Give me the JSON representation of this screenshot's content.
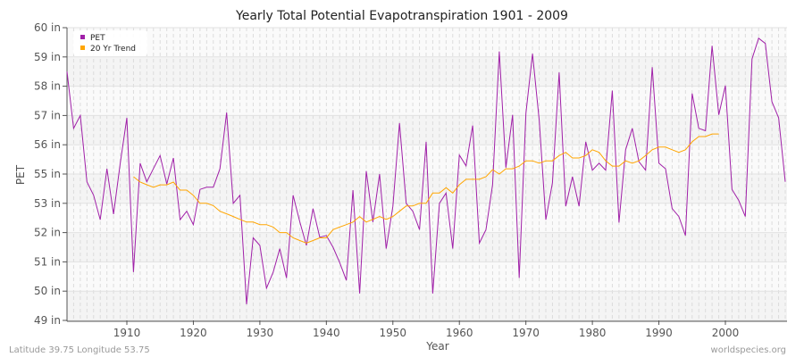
{
  "chart_data": {
    "type": "line",
    "title": "Yearly Total Potential Evapotranspiration 1901 - 2009",
    "xlabel": "Year",
    "ylabel": "PET",
    "xlim": [
      1901,
      2009
    ],
    "x_ticks": [
      1910,
      1920,
      1930,
      1940,
      1950,
      1960,
      1970,
      1980,
      1990,
      2000
    ],
    "y_ticks": [
      60,
      59,
      58,
      57,
      56,
      55,
      53,
      52,
      51,
      50,
      49
    ],
    "y_tick_labels": [
      "60 in",
      "59 in",
      "58 in",
      "57 in",
      "56 in",
      "55 in",
      "53 in",
      "52 in",
      "51 in",
      "50 in",
      "49 in"
    ],
    "grid": true,
    "legend_position": "top-left",
    "series": [
      {
        "name": "PET",
        "color": "#a020a8",
        "start_year": 1901,
        "values": [
          58.5,
          56.56,
          57.0,
          54.47,
          53.55,
          52.44,
          55.18,
          52.63,
          55.37,
          56.92,
          50.65,
          55.37,
          54.47,
          55.19,
          55.63,
          54.31,
          55.55,
          52.44,
          52.73,
          52.27,
          53.95,
          54.1,
          54.1,
          55.18,
          57.1,
          53.0,
          53.55,
          49.55,
          51.82,
          51.56,
          50.1,
          50.65,
          51.45,
          50.45,
          53.55,
          52.37,
          51.56,
          52.82,
          51.84,
          51.9,
          51.5,
          50.98,
          50.37,
          53.9,
          49.92,
          55.1,
          52.36,
          55.0,
          51.45,
          52.9,
          56.74,
          53.0,
          52.73,
          52.1,
          56.1,
          49.92,
          53.0,
          53.7,
          51.45,
          55.65,
          55.28,
          56.66,
          51.64,
          52.1,
          54.27,
          59.19,
          55.22,
          57.02,
          50.45,
          57.07,
          59.11,
          56.84,
          52.44,
          54.4,
          58.47,
          52.9,
          54.82,
          52.9,
          56.1,
          55.13,
          55.37,
          55.13,
          57.85,
          52.34,
          55.83,
          56.56,
          55.42,
          55.13,
          58.65,
          55.37,
          55.18,
          52.82,
          52.55,
          51.9,
          57.75,
          56.56,
          56.48,
          59.38,
          57.02,
          58.02,
          53.95,
          53.2,
          52.55,
          58.93,
          59.64,
          59.46,
          57.47,
          56.92,
          54.47
        ]
      },
      {
        "name": "20 Yr Trend",
        "color": "#ffa500",
        "start_year": 1911,
        "values": [
          54.82,
          54.45,
          54.27,
          54.1,
          54.26,
          54.26,
          54.45,
          53.9,
          53.9,
          53.55,
          53.0,
          53.0,
          52.92,
          52.73,
          52.64,
          52.55,
          52.45,
          52.36,
          52.36,
          52.27,
          52.27,
          52.19,
          52.0,
          52.0,
          51.82,
          51.73,
          51.64,
          51.73,
          51.82,
          51.82,
          52.1,
          52.19,
          52.27,
          52.36,
          52.55,
          52.36,
          52.45,
          52.55,
          52.45,
          52.55,
          52.73,
          52.91,
          52.91,
          53.0,
          53.0,
          53.7,
          53.7,
          54.07,
          53.7,
          54.27,
          54.64,
          54.64,
          54.64,
          54.82,
          55.15,
          55.0,
          55.18,
          55.18,
          55.27,
          55.45,
          55.45,
          55.37,
          55.45,
          55.45,
          55.63,
          55.74,
          55.55,
          55.55,
          55.63,
          55.83,
          55.74,
          55.45,
          55.27,
          55.27,
          55.45,
          55.37,
          55.45,
          55.63,
          55.83,
          55.92,
          55.92,
          55.83,
          55.74,
          55.83,
          56.1,
          56.28,
          56.28,
          56.37,
          56.37
        ]
      }
    ]
  },
  "footer": {
    "location": "Latitude 39.75 Longitude 53.75",
    "source": "worldspecies.org"
  }
}
